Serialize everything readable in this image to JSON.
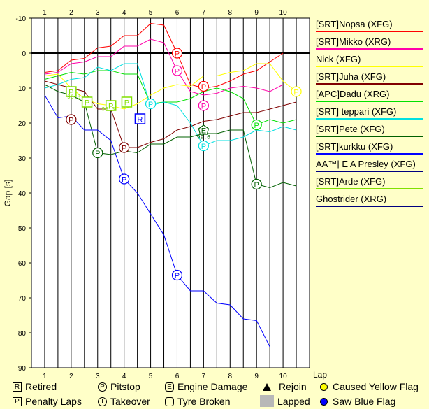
{
  "chart_data": {
    "type": "line",
    "ylabel": "Gap [s]",
    "xlabel": "Lap",
    "x_ticks": [
      "1",
      "2",
      "3",
      "4",
      "5",
      "6",
      "7",
      "8",
      "9",
      "10"
    ],
    "y_ticks": [
      "-10",
      "0",
      "10",
      "20",
      "30",
      "40",
      "50",
      "60",
      "70",
      "80",
      "90"
    ],
    "xlim": [
      0.5,
      11.0
    ],
    "ylim": [
      -10,
      90
    ],
    "y_inverted": true,
    "zero_line": 0,
    "grid": "vertical",
    "legend_placement": "right",
    "series": [
      {
        "name": "[SRT]Nopsa (XFG)",
        "color": "#ff0000",
        "x": [
          1,
          1.5,
          2,
          2.5,
          3,
          3.5,
          4,
          4.5,
          5,
          5.5,
          6,
          6.5,
          7,
          7.5,
          8,
          8.5,
          9,
          9.5,
          10
        ],
        "y": [
          5.5,
          5,
          2,
          1.5,
          -1.5,
          -2,
          -5,
          -5,
          -8.5,
          -8,
          0,
          9,
          10,
          9.5,
          8,
          6,
          5,
          2.5,
          0
        ]
      },
      {
        "name": "[SRT]Mikko (XRG)",
        "color": "#ff00aa",
        "x": [
          1,
          1.5,
          2,
          2.5,
          3,
          3.5,
          4,
          4.5,
          5,
          5.5,
          6,
          6.5,
          7,
          7.5,
          8,
          8.5,
          9,
          9.5,
          10
        ],
        "y": [
          6,
          5.5,
          3,
          2.5,
          1,
          1,
          -2,
          -2,
          -4,
          -3,
          5,
          11,
          12,
          11.5,
          10,
          9.5,
          10,
          11,
          9
        ]
      },
      {
        "name": "Nick (XFG)",
        "color": "#ffff00",
        "x": [
          1,
          1.5,
          2,
          2.5,
          3,
          3.5,
          4,
          4.5,
          5,
          5.5,
          6,
          6.5,
          7,
          7.5,
          8,
          8.5,
          9,
          9.5,
          10,
          10.5
        ],
        "y": [
          6.5,
          6,
          10,
          13,
          14.5,
          15,
          16,
          14.5,
          12,
          10,
          9,
          9.5,
          6.5,
          6.5,
          5.5,
          5,
          3,
          3,
          8,
          11
        ]
      },
      {
        "name": "[SRT]Juha (XFG)",
        "color": "#800000",
        "x": [
          1,
          1.5,
          2,
          2.5,
          3,
          3.5,
          4,
          4.5,
          5,
          5.5,
          6,
          6.5,
          7,
          7.5,
          8,
          8.5,
          9,
          9.5,
          10,
          10.5
        ],
        "y": [
          8,
          9,
          10,
          11,
          16,
          16,
          27,
          27,
          25.5,
          24.5,
          22,
          21,
          19.5,
          19,
          18,
          17,
          17,
          16,
          15,
          14
        ]
      },
      {
        "name": "[APC]Dadu (XRG)",
        "color": "#00e000",
        "x": [
          1,
          1.5,
          2,
          2.5,
          3,
          3.5,
          4,
          4.5,
          5,
          5.5,
          6,
          6.5,
          7,
          7.5,
          8,
          8.5,
          9,
          9.5,
          10,
          10.5
        ],
        "y": [
          7.5,
          6.5,
          5.5,
          6,
          5,
          5,
          6,
          6,
          14.5,
          14,
          14,
          13,
          11,
          10,
          11,
          13,
          20.5,
          19,
          20,
          19
        ]
      },
      {
        "name": "[SRT] teppari (XFG)",
        "color": "#00e0e0",
        "x": [
          1,
          1.5,
          2,
          2.5,
          3,
          3.5,
          4,
          4.5,
          5,
          5.5,
          6,
          6.5,
          7,
          7.5,
          8,
          8.5,
          9,
          9.5,
          10,
          10.5
        ],
        "y": [
          10,
          9,
          7.5,
          7,
          4,
          5,
          3,
          3,
          15,
          14,
          15,
          20,
          26.5,
          25,
          25,
          24,
          22,
          22.5,
          21,
          22
        ]
      },
      {
        "name": "[SRT]Pete (XFG)",
        "color": "#006000",
        "x": [
          1,
          1.5,
          2,
          2.5,
          3,
          3.5,
          4,
          4.5,
          5,
          5.5,
          6,
          6.5,
          7,
          7.5,
          8,
          8.5,
          9,
          9.5,
          10,
          10.5
        ],
        "y": [
          9,
          11,
          12,
          14,
          28.5,
          29,
          28,
          28.5,
          26,
          26,
          24,
          24,
          23,
          23,
          22,
          22,
          37.5,
          38.5,
          37,
          38
        ]
      },
      {
        "name": "[SRT]kurkku (XFG)",
        "color": "#0000ff",
        "x": [
          1,
          1.5,
          2,
          2.5,
          3,
          3.5,
          4,
          4.5,
          5,
          5.5,
          6,
          6.5,
          7,
          7.5,
          8,
          8.5,
          9,
          9.5
        ],
        "y": [
          12,
          18.5,
          18,
          22,
          22,
          25,
          36,
          40,
          46,
          52,
          63.5,
          68,
          68,
          71.5,
          72,
          76,
          76.5,
          84
        ]
      },
      {
        "name": "AA™| E A Presley (XFG)",
        "color": "#000080",
        "x": [],
        "y": []
      },
      {
        "name": "[SRT]Arde (XFG)",
        "color": "#80e000",
        "x": [],
        "y": []
      },
      {
        "name": "Ghostrider (XRG)",
        "color": "#000080",
        "x": [],
        "y": []
      }
    ],
    "annotations": [
      {
        "type": "pitstop",
        "label": "P",
        "x": 6,
        "y": 0,
        "color": "#ff0000"
      },
      {
        "type": "pitstop",
        "label": "P",
        "x": 7,
        "y": 9.5,
        "color": "#ff0000"
      },
      {
        "type": "pitstop",
        "label": "P",
        "x": 6,
        "y": 5,
        "color": "#ff00aa"
      },
      {
        "type": "pitstop",
        "label": "P",
        "x": 7,
        "y": 15,
        "color": "#ff00aa"
      },
      {
        "type": "pitstop",
        "label": "P",
        "x": 10.5,
        "y": 11,
        "color": "#ffff00"
      },
      {
        "type": "pitstop",
        "label": "P",
        "x": 2,
        "y": 19,
        "color": "#800000"
      },
      {
        "type": "pitstop",
        "label": "P",
        "x": 4,
        "y": 27,
        "color": "#800000"
      },
      {
        "type": "pitstop",
        "label": "P",
        "x": 9,
        "y": 20.5,
        "color": "#00e000"
      },
      {
        "type": "pitstop",
        "label": "P",
        "x": 5,
        "y": 14.5,
        "color": "#00e0e0"
      },
      {
        "type": "pitstop",
        "label": "P",
        "x": 7,
        "y": 26.5,
        "color": "#00e0e0"
      },
      {
        "type": "pitstop",
        "label": "P",
        "x": 3,
        "y": 28.5,
        "color": "#006000"
      },
      {
        "type": "pitstop",
        "label": "P",
        "x": 9,
        "y": 37.5,
        "color": "#006000"
      },
      {
        "type": "pitstop",
        "label": "P",
        "x": 4,
        "y": 36,
        "color": "#0000ff"
      },
      {
        "type": "pitstop",
        "label": "P",
        "x": 6,
        "y": 63.5,
        "color": "#0000ff"
      },
      {
        "type": "penalty",
        "label": "P",
        "x": 2,
        "y": 11,
        "color": "#80e000"
      },
      {
        "type": "penalty",
        "label": "P",
        "x": 2.6,
        "y": 14,
        "color": "#80e000"
      },
      {
        "type": "penalty",
        "label": "P",
        "x": 3.5,
        "y": 15,
        "color": "#80e000"
      },
      {
        "type": "penalty",
        "label": "P",
        "x": 4.1,
        "y": 14,
        "color": "#80e000"
      },
      {
        "type": "retired",
        "label": "R",
        "x": 4.6,
        "y": 18.8,
        "color": "#0000ff"
      },
      {
        "type": "engine",
        "label": "E",
        "x": 7,
        "y": 22,
        "color": "#006000"
      }
    ],
    "annotation_texts": [
      {
        "text": "99.6",
        "x": 7,
        "y": 24.5,
        "color": "#006000"
      },
      {
        "text": "96.3",
        "x": 3.4,
        "y": 16.5,
        "color": "#80e000"
      },
      {
        "text": "93.8",
        "x": 2.1,
        "y": 13,
        "color": "#80e000"
      }
    ]
  },
  "key": {
    "retired": "Retired",
    "penalty": "Penalty Laps",
    "pitstop": "Pitstop",
    "takeover": "Takeover",
    "engine": "Engine Damage",
    "tyre": "Tyre Broken",
    "rejoin": "Rejoin",
    "lapped": "Lapped",
    "yellow": "Caused Yellow Flag",
    "blue": "Saw Blue Flag"
  }
}
